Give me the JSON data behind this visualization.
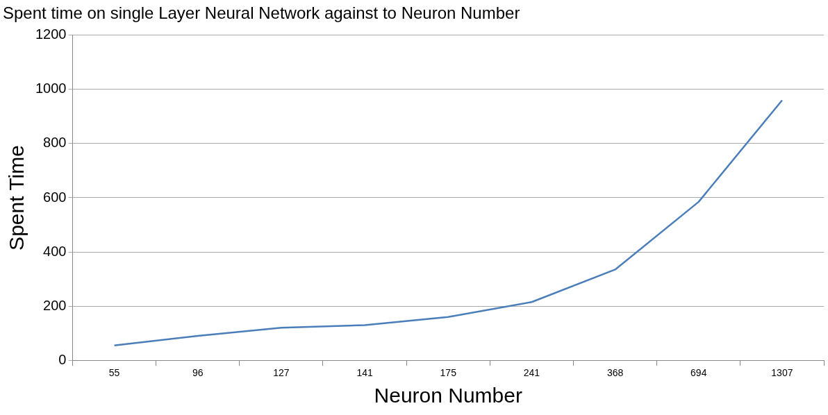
{
  "chart_data": {
    "type": "line",
    "title": "Spent time on single Layer Neural Network against to Neuron Number",
    "xlabel": "Neuron Number",
    "ylabel": "Spent Time",
    "categories": [
      "55",
      "96",
      "127",
      "141",
      "175",
      "241",
      "368",
      "694",
      "1307"
    ],
    "series": [
      {
        "color": "#4a7ebb",
        "values": [
          55,
          90,
          120,
          130,
          160,
          215,
          335,
          585,
          960
        ]
      }
    ],
    "ylim": [
      0,
      1200
    ],
    "yticks": [
      0,
      200,
      400,
      600,
      800,
      1000,
      1200
    ],
    "grid": "y",
    "legend": false,
    "marker": "none",
    "line_style": "solid"
  }
}
